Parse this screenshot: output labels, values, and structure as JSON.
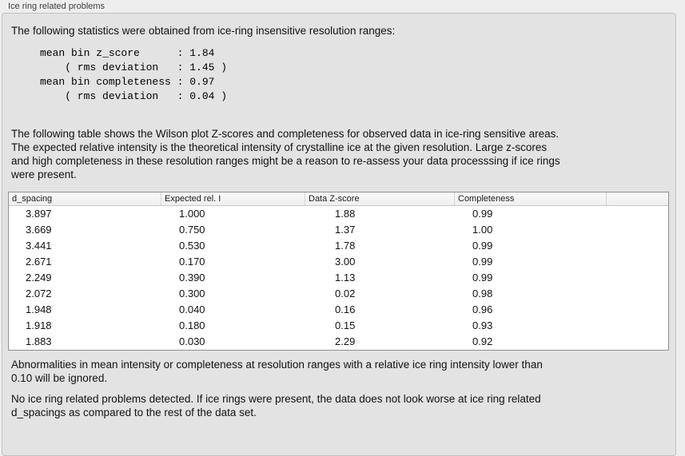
{
  "group": {
    "title": "Ice ring related problems"
  },
  "intro": "The following statistics were obtained from ice-ring insensitive resolution ranges:",
  "stats_block": [
    "mean bin z_score      : 1.84",
    "    ( rms deviation   : 1.45 )",
    "mean bin completeness : 0.97",
    "    ( rms deviation   : 0.04 )"
  ],
  "table_description": [
    "The following table shows the Wilson plot Z-scores and completeness for observed data in ice-ring sensitive areas.",
    "The expected relative intensity is the theoretical intensity of crystalline ice at the given resolution. Large z-scores",
    "and high completeness in these resolution ranges might be a reason to re-assess your data processsing if ice rings",
    "were present."
  ],
  "table": {
    "headers": [
      "d_spacing",
      "Expected rel. I",
      "Data Z-score",
      "Completeness"
    ],
    "rows": [
      [
        "3.897",
        "1.000",
        "1.88",
        "0.99"
      ],
      [
        "3.669",
        "0.750",
        "1.37",
        "1.00"
      ],
      [
        "3.441",
        "0.530",
        "1.78",
        "0.99"
      ],
      [
        "2.671",
        "0.170",
        "3.00",
        "0.99"
      ],
      [
        "2.249",
        "0.390",
        "1.13",
        "0.99"
      ],
      [
        "2.072",
        "0.300",
        "0.02",
        "0.98"
      ],
      [
        "1.948",
        "0.040",
        "0.16",
        "0.96"
      ],
      [
        "1.918",
        "0.180",
        "0.15",
        "0.93"
      ],
      [
        "1.883",
        "0.030",
        "2.29",
        "0.92"
      ]
    ]
  },
  "note_ignore": [
    "Abnormalities in mean intensity or completeness at resolution ranges with a relative ice ring intensity lower than",
    "0.10 will be ignored."
  ],
  "conclusion": [
    "No ice ring related problems detected. If ice rings were present, the data does not look worse at ice ring related",
    "d_spacings as compared to the rest of the data set."
  ],
  "colors": {
    "window_background": "#eeeeee",
    "groupbox_background": "#e3e3e3",
    "table_border": "#8f8f8f",
    "header_background": "#f4f4f4"
  }
}
